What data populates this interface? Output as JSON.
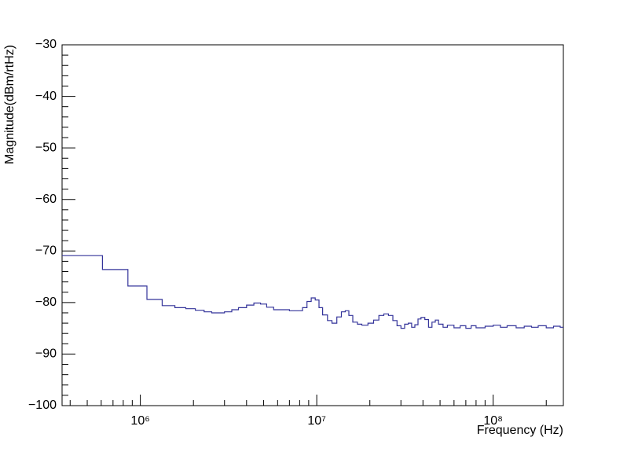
{
  "chart_data": {
    "type": "step",
    "xlabel": "Frequency (Hz)",
    "ylabel": "Magnitude(dBm/rtHz)",
    "xscale": "log",
    "xlim": [
      360000,
      250000000
    ],
    "ylim": [
      -100,
      -30
    ],
    "xticks": [
      {
        "value": 1000000,
        "label": "10⁶"
      },
      {
        "value": 10000000,
        "label": "10⁷"
      },
      {
        "value": 100000000,
        "label": "10⁸"
      }
    ],
    "yticks": [
      {
        "value": -100,
        "label": "−100"
      },
      {
        "value": -90,
        "label": "−90"
      },
      {
        "value": -80,
        "label": "−80"
      },
      {
        "value": -70,
        "label": "−70"
      },
      {
        "value": -60,
        "label": "−60"
      },
      {
        "value": -50,
        "label": "−50"
      },
      {
        "value": -40,
        "label": "−40"
      },
      {
        "value": -30,
        "label": "−30"
      }
    ],
    "color": "#33339a",
    "x": [
      360000,
      610000,
      850000,
      1090000,
      1330000,
      1570000,
      1810000,
      2050000,
      2300000,
      2540000,
      2780000,
      3000000,
      3300000,
      3600000,
      4000000,
      4400000,
      4800000,
      5200000,
      5700000,
      6300000,
      7000000,
      7800000,
      8300000,
      8800000,
      9300000,
      9800000,
      10300000,
      10800000,
      11500000,
      12200000,
      13000000,
      13800000,
      14500000,
      15200000,
      16000000,
      17000000,
      18000000,
      19500000,
      21000000,
      22500000,
      24000000,
      25500000,
      27000000,
      28500000,
      30000000,
      31500000,
      33000000,
      34500000,
      36000000,
      37500000,
      39000000,
      41000000,
      43000000,
      45000000,
      47000000,
      49000000,
      52000000,
      55000000,
      60000000,
      65000000,
      70000000,
      75000000,
      80000000,
      90000000,
      100000000,
      110000000,
      120000000,
      135000000,
      150000000,
      165000000,
      180000000,
      200000000,
      220000000,
      240000000
    ],
    "values": [
      -70.9,
      -73.6,
      -76.8,
      -79.4,
      -80.6,
      -81.0,
      -81.2,
      -81.5,
      -81.8,
      -82.0,
      -82.0,
      -81.8,
      -81.4,
      -81.0,
      -80.5,
      -80.1,
      -80.3,
      -80.9,
      -81.4,
      -81.4,
      -81.6,
      -81.6,
      -81.0,
      -79.8,
      -79.1,
      -79.5,
      -81.0,
      -82.4,
      -83.5,
      -84.0,
      -82.8,
      -81.8,
      -81.6,
      -82.5,
      -83.8,
      -84.2,
      -84.4,
      -84.0,
      -83.4,
      -82.5,
      -82.2,
      -82.5,
      -83.5,
      -84.5,
      -85.0,
      -84.2,
      -84.0,
      -84.8,
      -84.3,
      -83.2,
      -82.9,
      -83.3,
      -84.8,
      -83.8,
      -83.4,
      -84.2,
      -84.8,
      -84.4,
      -84.9,
      -84.5,
      -85.0,
      -84.5,
      -84.9,
      -84.6,
      -84.4,
      -84.8,
      -84.5,
      -84.9,
      -84.6,
      -84.8,
      -84.5,
      -84.9,
      -84.6,
      -84.8
    ]
  }
}
